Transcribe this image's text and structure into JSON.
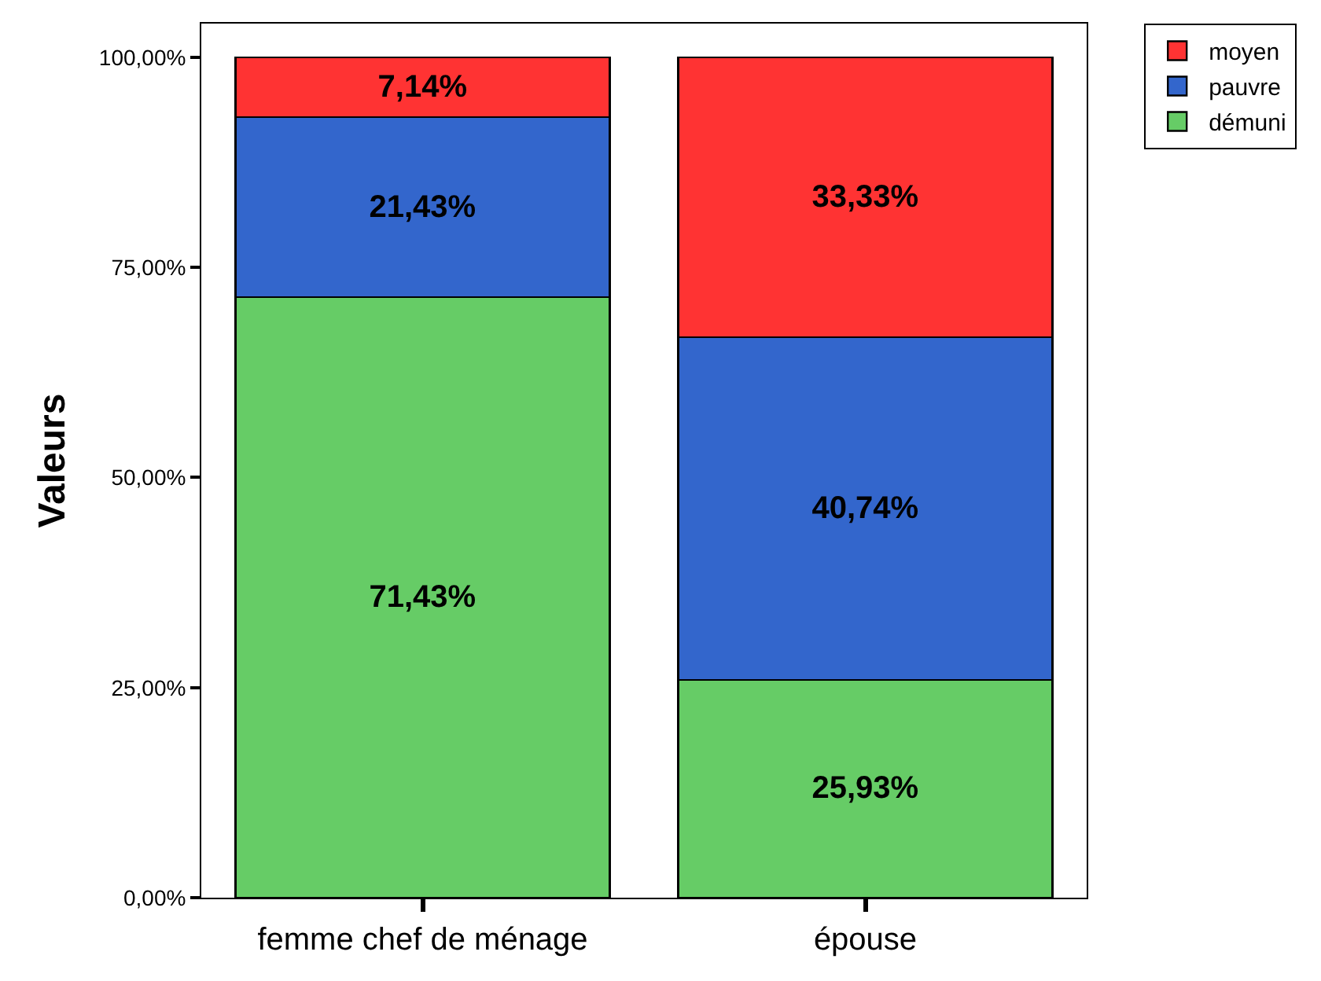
{
  "chart_data": {
    "type": "bar",
    "stacked": true,
    "ylabel": "Valeurs",
    "categories": [
      "femme chef de ménage",
      "épouse"
    ],
    "series": [
      {
        "name": "démuni",
        "color": "#66cc66",
        "values": [
          71.43,
          25.93
        ],
        "value_labels": [
          "71,43%",
          "25,93%"
        ]
      },
      {
        "name": "pauvre",
        "color": "#3366cc",
        "values": [
          21.43,
          40.74
        ],
        "value_labels": [
          "21,43%",
          "40,74%"
        ]
      },
      {
        "name": "moyen",
        "color": "#ff3333",
        "values": [
          7.14,
          33.33
        ],
        "value_labels": [
          "7,14%",
          "33,33%"
        ]
      }
    ],
    "ylim": [
      0,
      104
    ],
    "yticks": [
      {
        "value": 0,
        "label": "0,00%"
      },
      {
        "value": 25,
        "label": "25,00%"
      },
      {
        "value": 50,
        "label": "50,00%"
      },
      {
        "value": 75,
        "label": "75,00%"
      },
      {
        "value": 100,
        "label": "100,00%"
      }
    ],
    "grid": false,
    "legend": "top right"
  }
}
